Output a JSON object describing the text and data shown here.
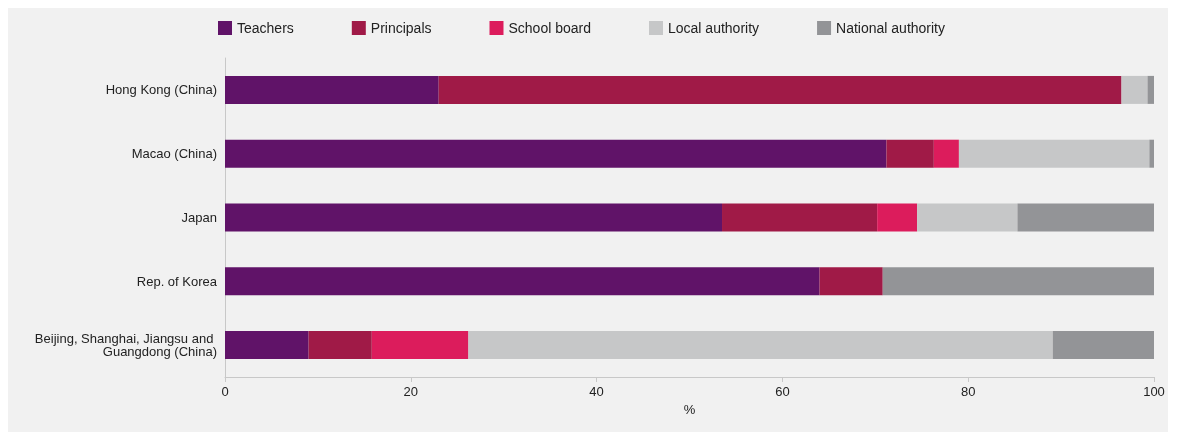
{
  "chart_data": {
    "type": "bar",
    "orientation": "horizontal",
    "stacked": true,
    "xlabel": "%",
    "categories": [
      "Hong Kong (China)",
      "Macao (China)",
      "Japan",
      "Rep. of Korea",
      "Beijing, Shanghai, Jiangsu and Guangdong (China)"
    ],
    "series": [
      {
        "name": "Teachers",
        "color": "#601368",
        "values": [
          23.0,
          71.2,
          53.5,
          64.0,
          9.0
        ]
      },
      {
        "name": "Principals",
        "color": "#a01a47",
        "values": [
          73.5,
          5.1,
          16.7,
          6.8,
          6.8
        ]
      },
      {
        "name": "School board",
        "color": "#dc1c5c",
        "values": [
          0,
          2.7,
          4.3,
          0,
          10.4
        ]
      },
      {
        "name": "Local authority",
        "color": "#c6c7c8",
        "values": [
          2.8,
          20.5,
          10.8,
          0,
          62.9
        ]
      },
      {
        "name": "National authority",
        "color": "#939497",
        "values": [
          0.7,
          0.5,
          14.7,
          29.2,
          10.9
        ]
      }
    ],
    "xlim": [
      0,
      100
    ],
    "xticks": [
      0,
      20,
      40,
      60,
      80,
      100
    ],
    "grid": false,
    "legend": "top"
  }
}
